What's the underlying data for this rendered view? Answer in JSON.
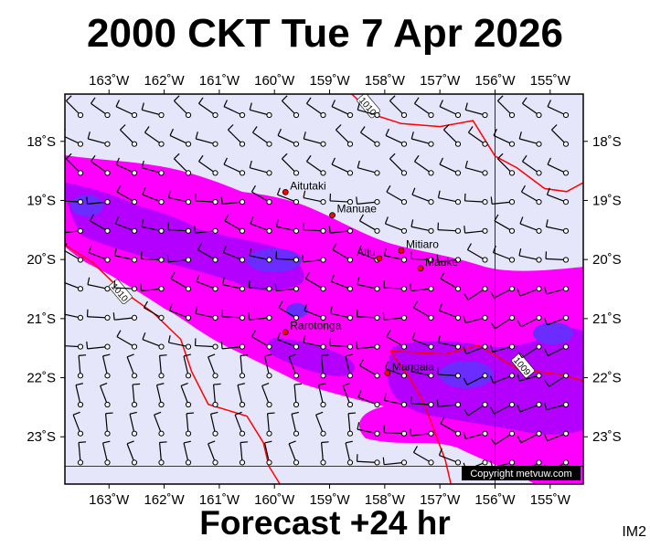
{
  "title": "2000 CKT Tue 7 Apr 2026",
  "footer": "Forecast +24 hr",
  "corner_code": "IM2",
  "copyright": "Copyright metvuw.com",
  "colors": {
    "ocean": "#e6e6fa",
    "rain_light": "#ff00ff",
    "rain_medium": "#b400ff",
    "rain_heavy": "#6a2cff",
    "isobar": "#ff0000",
    "wind": "#000000"
  },
  "map": {
    "lon_range": [
      -163.8,
      -154.4
    ],
    "lat_range": [
      -23.8,
      -17.2
    ],
    "lon_ticks": [
      {
        "value": -163,
        "label": "163˚W"
      },
      {
        "value": -162,
        "label": "162˚W"
      },
      {
        "value": -161,
        "label": "161˚W"
      },
      {
        "value": -160,
        "label": "160˚W"
      },
      {
        "value": -159,
        "label": "159˚W"
      },
      {
        "value": -158,
        "label": "158˚W"
      },
      {
        "value": -157,
        "label": "157˚W"
      },
      {
        "value": -156,
        "label": "156˚W"
      },
      {
        "value": -155,
        "label": "155˚W"
      }
    ],
    "lat_ticks": [
      {
        "value": -18,
        "label": "18˚S"
      },
      {
        "value": -19,
        "label": "19˚S"
      },
      {
        "value": -20,
        "label": "20˚S"
      },
      {
        "value": -21,
        "label": "21˚S"
      },
      {
        "value": -22,
        "label": "22˚S"
      },
      {
        "value": -23,
        "label": "23˚S"
      }
    ],
    "places": [
      {
        "name": "Aitutaki",
        "lon": -159.8,
        "lat": -18.86
      },
      {
        "name": "Manuae",
        "lon": -158.95,
        "lat": -19.25
      },
      {
        "name": "Mitiaro",
        "lon": -157.7,
        "lat": -19.85
      },
      {
        "name": "Atiu",
        "lon": -158.1,
        "lat": -19.98
      },
      {
        "name": "Mauke",
        "lon": -157.35,
        "lat": -20.15
      },
      {
        "name": "Rarotonga",
        "lon": -159.8,
        "lat": -21.23
      },
      {
        "name": "Mangaia",
        "lon": -157.95,
        "lat": -21.92
      }
    ],
    "isobars": [
      {
        "label": "1010",
        "label_lon": -158.3,
        "label_lat": -17.4,
        "points": [
          [
            -158.6,
            -17.2
          ],
          [
            -158.2,
            -17.55
          ],
          [
            -157.7,
            -17.7
          ],
          [
            -157.0,
            -17.75
          ],
          [
            -156.4,
            -17.65
          ],
          [
            -156.0,
            -18.25
          ],
          [
            -155.6,
            -18.45
          ],
          [
            -155.1,
            -18.8
          ],
          [
            -154.7,
            -18.85
          ],
          [
            -154.4,
            -18.7
          ]
        ]
      },
      {
        "label": "1010",
        "label_lon": -162.8,
        "label_lat": -20.55,
        "points": [
          [
            -163.8,
            -19.75
          ],
          [
            -163.3,
            -20.05
          ],
          [
            -162.8,
            -20.5
          ],
          [
            -162.2,
            -20.9
          ],
          [
            -161.7,
            -21.35
          ],
          [
            -161.5,
            -21.9
          ],
          [
            -161.2,
            -22.45
          ],
          [
            -160.5,
            -22.65
          ],
          [
            -160.2,
            -23.1
          ],
          [
            -160.1,
            -23.5
          ],
          [
            -159.9,
            -23.8
          ]
        ]
      },
      {
        "label": "1009",
        "label_lon": -155.5,
        "label_lat": -21.8,
        "points": [
          [
            -157.9,
            -21.55
          ],
          [
            -156.9,
            -21.6
          ],
          [
            -156.3,
            -21.45
          ],
          [
            -155.6,
            -21.85
          ],
          [
            -154.8,
            -21.95
          ],
          [
            -154.4,
            -22.05
          ]
        ]
      },
      {
        "label": "",
        "label_lon": 0,
        "label_lat": 0,
        "points": [
          [
            -157.9,
            -21.55
          ],
          [
            -157.55,
            -22.0
          ],
          [
            -157.3,
            -22.4
          ],
          [
            -157.1,
            -22.9
          ],
          [
            -156.9,
            -23.4
          ],
          [
            -156.8,
            -23.8
          ]
        ]
      }
    ]
  }
}
